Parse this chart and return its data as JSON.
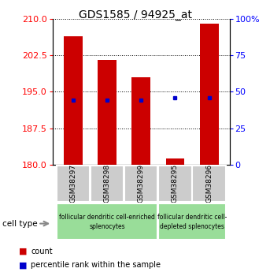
{
  "title": "GDS1585 / 94925_at",
  "samples": [
    "GSM38297",
    "GSM38298",
    "GSM38299",
    "GSM38295",
    "GSM38296"
  ],
  "counts": [
    206.5,
    201.5,
    198.0,
    181.2,
    209.0
  ],
  "percentiles": [
    193.3,
    193.3,
    193.3,
    193.7,
    193.7
  ],
  "ylim_left": [
    180,
    210
  ],
  "ylim_right": [
    0,
    100
  ],
  "yticks_left": [
    180,
    187.5,
    195,
    202.5,
    210
  ],
  "yticks_right": [
    0,
    25,
    50,
    75,
    100
  ],
  "bar_color": "#cc0000",
  "dot_color": "#0000cc",
  "bar_width": 0.55,
  "bar_bottom": 180,
  "group1_label": "follicular dendritic cell-enriched\nsplenocytes",
  "group2_label": "follicular dendritic cell-\ndepleted splenocytes",
  "group_color": "#99dd99",
  "legend_items": [
    {
      "label": "count",
      "color": "#cc0000"
    },
    {
      "label": "percentile rank within the sample",
      "color": "#0000cc"
    }
  ],
  "cell_type_label": "cell type",
  "xticklabel_bg": "#cccccc"
}
